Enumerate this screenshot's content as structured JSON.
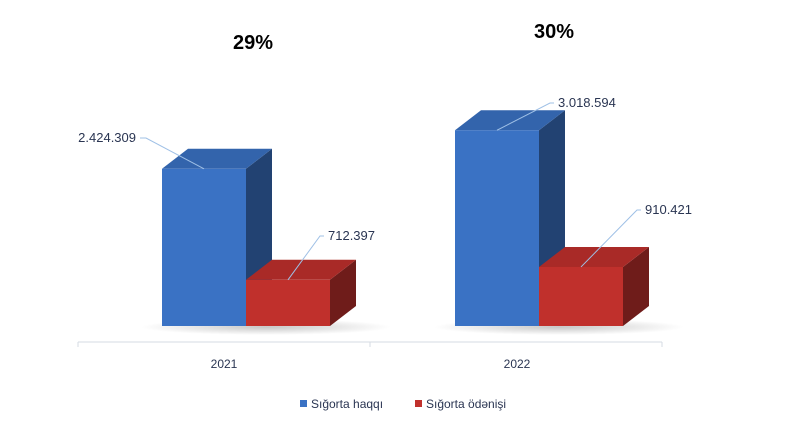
{
  "chart_data": {
    "type": "bar",
    "style": "3d-clustered-column",
    "categories": [
      "2021",
      "2022"
    ],
    "series": [
      {
        "name": "Sığorta haqqı",
        "values": [
          2424309,
          3018594
        ],
        "labels": [
          "2.424.309",
          "3.018.594"
        ],
        "color": "#3a72c4"
      },
      {
        "name": "Sığorta ödənişi",
        "values": [
          712397,
          910421
        ],
        "labels": [
          "712.397",
          "910.421"
        ],
        "color": "#c0302c"
      }
    ],
    "annotations": [
      "29%",
      "30%"
    ],
    "legend_position": "bottom",
    "grid": false,
    "ylim": [
      0,
      3300000
    ]
  }
}
